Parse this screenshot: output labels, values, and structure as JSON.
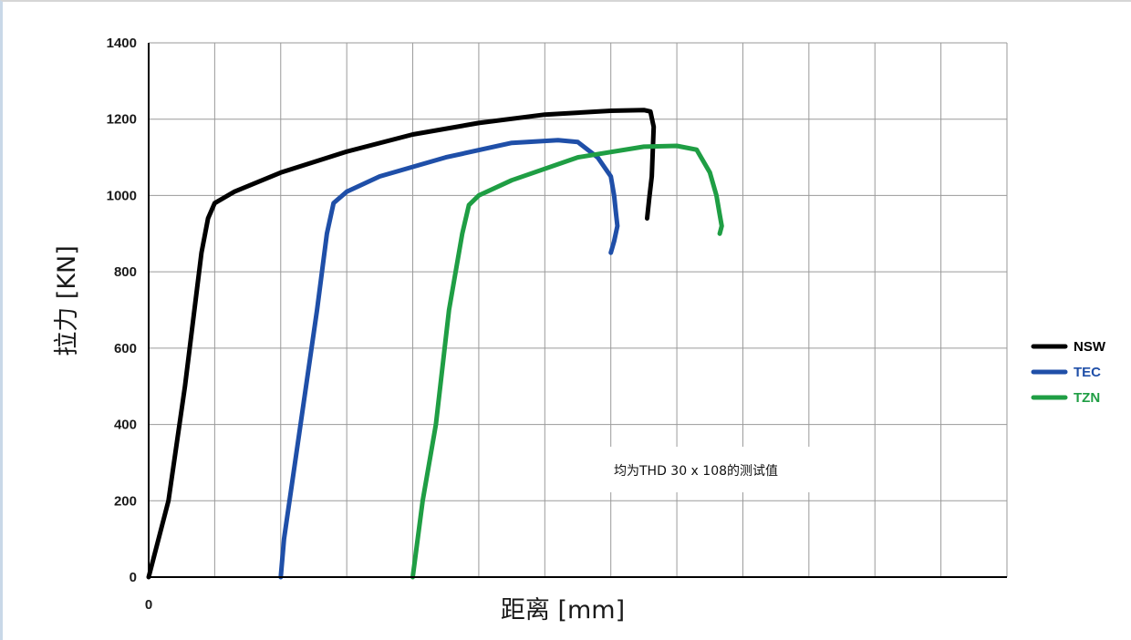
{
  "chart_data": {
    "type": "line",
    "title": "",
    "xlabel": "距离 [mm]",
    "ylabel": "拉力 [KN]",
    "x_ticks": [
      "0"
    ],
    "y_ticks": [
      "0",
      "200",
      "400",
      "600",
      "800",
      "1000",
      "1200",
      "1400"
    ],
    "ylim": [
      0,
      1400
    ],
    "xlim": [
      0,
      13
    ],
    "grid": true,
    "legend_position": "right",
    "annotation": "均为THD 30 x 108的测试值",
    "series": [
      {
        "name": "NSW",
        "color": "#000000",
        "points": [
          [
            0,
            0
          ],
          [
            0.3,
            200
          ],
          [
            0.55,
            500
          ],
          [
            0.8,
            850
          ],
          [
            0.9,
            940
          ],
          [
            1.0,
            980
          ],
          [
            1.3,
            1010
          ],
          [
            2,
            1060
          ],
          [
            3,
            1115
          ],
          [
            4,
            1160
          ],
          [
            5,
            1190
          ],
          [
            6,
            1212
          ],
          [
            7,
            1222
          ],
          [
            7.5,
            1224
          ],
          [
            7.6,
            1220
          ],
          [
            7.65,
            1180
          ],
          [
            7.62,
            1050
          ],
          [
            7.58,
            990
          ],
          [
            7.55,
            940
          ]
        ]
      },
      {
        "name": "TEC",
        "color": "#1f4fa8",
        "points": [
          [
            2,
            0
          ],
          [
            2.05,
            100
          ],
          [
            2.3,
            400
          ],
          [
            2.55,
            700
          ],
          [
            2.7,
            900
          ],
          [
            2.8,
            980
          ],
          [
            3,
            1010
          ],
          [
            3.5,
            1050
          ],
          [
            4.5,
            1100
          ],
          [
            5.5,
            1138
          ],
          [
            6.2,
            1145
          ],
          [
            6.5,
            1140
          ],
          [
            6.8,
            1100
          ],
          [
            7.0,
            1050
          ],
          [
            7.05,
            1000
          ],
          [
            7.08,
            950
          ],
          [
            7.1,
            920
          ],
          [
            7.05,
            880
          ],
          [
            7.0,
            850
          ]
        ]
      },
      {
        "name": "TZN",
        "color": "#1f9e44",
        "points": [
          [
            4,
            0
          ],
          [
            4.15,
            200
          ],
          [
            4.35,
            400
          ],
          [
            4.55,
            700
          ],
          [
            4.75,
            900
          ],
          [
            4.85,
            975
          ],
          [
            5.0,
            1000
          ],
          [
            5.5,
            1040
          ],
          [
            6.5,
            1100
          ],
          [
            7.5,
            1128
          ],
          [
            8.0,
            1130
          ],
          [
            8.3,
            1120
          ],
          [
            8.5,
            1060
          ],
          [
            8.6,
            1000
          ],
          [
            8.65,
            950
          ],
          [
            8.68,
            920
          ],
          [
            8.65,
            900
          ]
        ]
      }
    ]
  }
}
